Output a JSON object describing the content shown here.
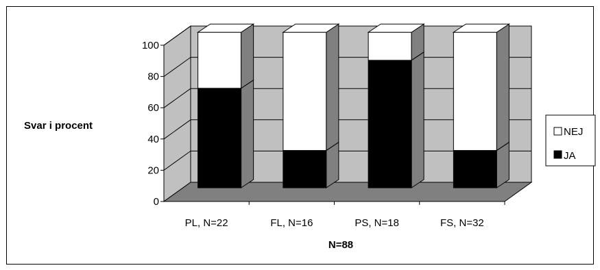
{
  "chart_data": {
    "type": "bar",
    "stacked": true,
    "three_d": true,
    "categories": [
      "PL, N=22",
      "FL, N=16",
      "PS, N=18",
      "FS, N=32"
    ],
    "series": [
      {
        "name": "JA",
        "values": [
          64,
          24,
          82,
          24
        ],
        "color": "#000000"
      },
      {
        "name": "NEJ",
        "values": [
          36,
          76,
          18,
          76
        ],
        "color": "#ffffff"
      }
    ],
    "title": "",
    "xlabel": "N=88",
    "ylabel": "Svar i procent",
    "ylim": [
      0,
      100
    ],
    "yticks": [
      0,
      20,
      40,
      60,
      80,
      100
    ],
    "grid": true,
    "legend_placement": "right",
    "colors": {
      "wall": "#c0c0c0",
      "floor": "#808080",
      "bar_side": "#808080"
    }
  }
}
